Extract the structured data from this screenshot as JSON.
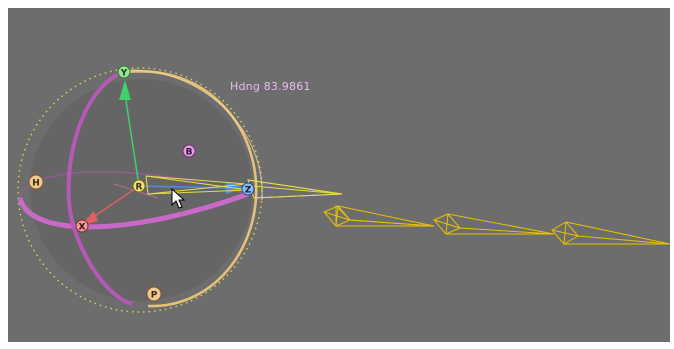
{
  "viewport": {
    "background_color": "#6d6d6d",
    "readout": {
      "label": "Hdng",
      "value": "83.9861",
      "color": "#e6bcf2"
    }
  },
  "gizmo": {
    "axis_labels": {
      "y": "Y",
      "z": "Z",
      "x": "X",
      "r": "R",
      "h": "H",
      "b": "B",
      "p": "P"
    },
    "colors": {
      "heading_ring": "#c96ac9",
      "pitch_ring": "#b45ab4",
      "bank_ring": "#e8c078",
      "dotted_boundary": "#e2d35a",
      "y_axis": "#3fd16a",
      "z_axis": "#4c8fe0",
      "x_axis": "#e06060"
    }
  },
  "icons": {
    "cursor": "mouse-pointer-icon",
    "keyframes": "camera-keyframe-icon"
  }
}
